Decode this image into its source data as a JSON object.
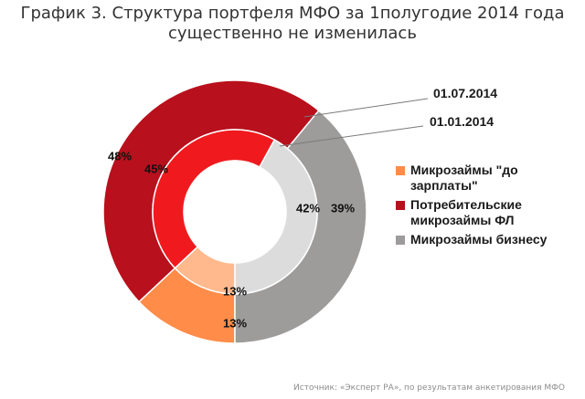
{
  "title": {
    "line1": "График 3. Структура портфеля МФО за 1полугодие 2014 года",
    "line2": "существенно не изменилась"
  },
  "chart_data": {
    "type": "donut",
    "title": "График 3. Структура портфеля МФО за 1полугодие 2014 года существенно не изменилась",
    "categories": [
      "Микрозаймы \"до зарплаты\"",
      "Потребительские микрозаймы ФЛ",
      "Микрозаймы бизнесу"
    ],
    "series": [
      {
        "name": "01.07.2014",
        "ring": "outer",
        "values": [
          13,
          48,
          39
        ],
        "labels": [
          "13%",
          "48%",
          "39%"
        ]
      },
      {
        "name": "01.01.2014",
        "ring": "inner",
        "values": [
          13,
          45,
          42
        ],
        "labels": [
          "13%",
          "45%",
          "42%"
        ]
      }
    ],
    "colors": {
      "outer": [
        "#ff8c48",
        "#b8101c",
        "#9e9b9b"
      ],
      "inner": [
        "#ffb98c",
        "#f01a1e",
        "#dcdcdc"
      ]
    },
    "legend_position": "right"
  },
  "legend": {
    "items": [
      {
        "line1": "Микрозаймы \"до",
        "line2": "зарплаты\"",
        "color": "#ff8c48"
      },
      {
        "line1": "Потребительские",
        "line2": "микрозаймы ФЛ",
        "color": "#b8101c"
      },
      {
        "line1": "Микрозаймы бизнесу",
        "line2": "",
        "color": "#9e9b9b"
      }
    ]
  },
  "callouts": {
    "outer": "01.07.2014",
    "inner": "01.01.2014"
  },
  "source": "Источник: «Эксперт РА», по результатам анкетирования МФО"
}
